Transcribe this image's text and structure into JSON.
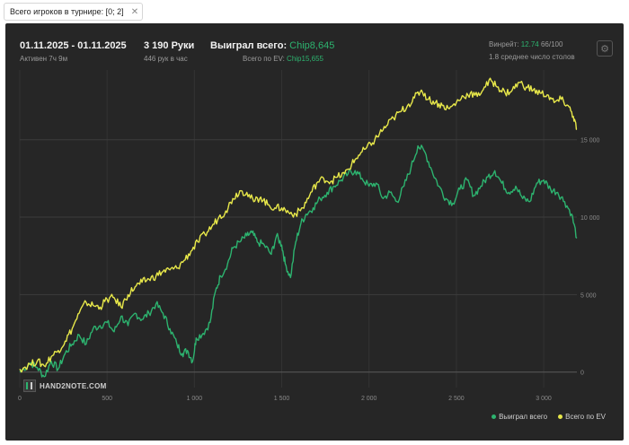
{
  "filter": {
    "label": "Всего игроков в турнире: [0; 2]",
    "close": "✕"
  },
  "header": {
    "date_range": "01.11.2025 - 01.11.2025",
    "active": "Активен 7ч 9м",
    "hands": "3 190 Руки",
    "hands_per_hour": "446 рук в час",
    "won_label": "Выиграл всего:",
    "won_value": "Chip8,645",
    "ev_label": "Всего по EV:",
    "ev_value": "Chip15,655",
    "winrate_label": "Винрейт:",
    "winrate_value": "12.74",
    "winrate_suffix": "66/100",
    "tables": "1.8 среднее число столов",
    "settings_icon": "gear-icon"
  },
  "logo": {
    "text": "HAND2NOTE.COM"
  },
  "legend": [
    {
      "label": "Выиграл всего",
      "color": "#2db36f"
    },
    {
      "label": "Всего по EV",
      "color": "#e8e84a"
    }
  ],
  "chart_data": {
    "type": "line",
    "xlim": [
      0,
      3190
    ],
    "ylim": [
      -1000,
      19500
    ],
    "x_ticks": [
      0,
      500,
      1000,
      1500,
      2000,
      2500,
      3000
    ],
    "x_tick_labels": [
      "0",
      "500",
      "1 000",
      "1 500",
      "2 000",
      "2 500",
      "3 000"
    ],
    "y_ticks": [
      0,
      5000,
      10000,
      15000
    ],
    "y_tick_labels": [
      "0",
      "5 000",
      "10 000",
      "15 000"
    ],
    "grid": true,
    "legend_position": "bottom-right",
    "series": [
      {
        "name": "Выиграл всего",
        "color": "#2db36f",
        "points": [
          [
            0,
            0
          ],
          [
            60,
            600
          ],
          [
            100,
            300
          ],
          [
            140,
            -300
          ],
          [
            180,
            700
          ],
          [
            220,
            200
          ],
          [
            260,
            1200
          ],
          [
            300,
            1800
          ],
          [
            340,
            2400
          ],
          [
            380,
            1800
          ],
          [
            420,
            2800
          ],
          [
            460,
            3000
          ],
          [
            500,
            3200
          ],
          [
            540,
            2600
          ],
          [
            580,
            3600
          ],
          [
            620,
            3000
          ],
          [
            660,
            3800
          ],
          [
            700,
            3400
          ],
          [
            740,
            3800
          ],
          [
            780,
            4400
          ],
          [
            820,
            3800
          ],
          [
            860,
            2800
          ],
          [
            900,
            1800
          ],
          [
            930,
            1200
          ],
          [
            960,
            1400
          ],
          [
            990,
            700
          ],
          [
            1010,
            2200
          ],
          [
            1050,
            2500
          ],
          [
            1090,
            3200
          ],
          [
            1120,
            5200
          ],
          [
            1150,
            6200
          ],
          [
            1190,
            7000
          ],
          [
            1220,
            8000
          ],
          [
            1260,
            8400
          ],
          [
            1300,
            8800
          ],
          [
            1330,
            9000
          ],
          [
            1360,
            8400
          ],
          [
            1400,
            8200
          ],
          [
            1440,
            7600
          ],
          [
            1470,
            8800
          ],
          [
            1500,
            8200
          ],
          [
            1520,
            7000
          ],
          [
            1550,
            6100
          ],
          [
            1580,
            8400
          ],
          [
            1610,
            9600
          ],
          [
            1640,
            10200
          ],
          [
            1680,
            10600
          ],
          [
            1720,
            11200
          ],
          [
            1760,
            11600
          ],
          [
            1800,
            12000
          ],
          [
            1840,
            12400
          ],
          [
            1880,
            12800
          ],
          [
            1920,
            13000
          ],
          [
            1960,
            12500
          ],
          [
            2000,
            12000
          ],
          [
            2040,
            12200
          ],
          [
            2080,
            11200
          ],
          [
            2120,
            11600
          ],
          [
            2160,
            11000
          ],
          [
            2200,
            12000
          ],
          [
            2240,
            13200
          ],
          [
            2280,
            14600
          ],
          [
            2320,
            14200
          ],
          [
            2360,
            13000
          ],
          [
            2400,
            12000
          ],
          [
            2440,
            11200
          ],
          [
            2480,
            10900
          ],
          [
            2520,
            11800
          ],
          [
            2560,
            12400
          ],
          [
            2600,
            11400
          ],
          [
            2640,
            12000
          ],
          [
            2680,
            12600
          ],
          [
            2720,
            13000
          ],
          [
            2760,
            12200
          ],
          [
            2800,
            11600
          ],
          [
            2840,
            12000
          ],
          [
            2880,
            11200
          ],
          [
            2920,
            11000
          ],
          [
            2960,
            12200
          ],
          [
            3000,
            12400
          ],
          [
            3040,
            11800
          ],
          [
            3080,
            11600
          ],
          [
            3120,
            11000
          ],
          [
            3160,
            10200
          ],
          [
            3190,
            8645
          ]
        ]
      },
      {
        "name": "Всего по EV",
        "color": "#e8e84a",
        "points": [
          [
            0,
            200
          ],
          [
            60,
            500
          ],
          [
            100,
            700
          ],
          [
            140,
            400
          ],
          [
            180,
            1000
          ],
          [
            220,
            1400
          ],
          [
            260,
            2000
          ],
          [
            300,
            2800
          ],
          [
            340,
            3800
          ],
          [
            380,
            4500
          ],
          [
            420,
            4300
          ],
          [
            460,
            4200
          ],
          [
            500,
            4700
          ],
          [
            540,
            4800
          ],
          [
            580,
            4200
          ],
          [
            620,
            5000
          ],
          [
            660,
            5500
          ],
          [
            700,
            5800
          ],
          [
            740,
            6000
          ],
          [
            780,
            6200
          ],
          [
            820,
            6500
          ],
          [
            860,
            6600
          ],
          [
            900,
            6700
          ],
          [
            940,
            7200
          ],
          [
            980,
            7800
          ],
          [
            1020,
            8400
          ],
          [
            1060,
            8900
          ],
          [
            1100,
            9400
          ],
          [
            1140,
            10000
          ],
          [
            1180,
            10400
          ],
          [
            1220,
            11200
          ],
          [
            1260,
            11700
          ],
          [
            1300,
            11600
          ],
          [
            1340,
            11000
          ],
          [
            1380,
            11300
          ],
          [
            1420,
            10800
          ],
          [
            1460,
            10600
          ],
          [
            1500,
            10600
          ],
          [
            1540,
            10300
          ],
          [
            1580,
            10200
          ],
          [
            1620,
            10600
          ],
          [
            1660,
            11400
          ],
          [
            1700,
            12200
          ],
          [
            1740,
            12500
          ],
          [
            1780,
            12300
          ],
          [
            1820,
            12600
          ],
          [
            1860,
            12800
          ],
          [
            1900,
            13400
          ],
          [
            1940,
            14000
          ],
          [
            1980,
            14400
          ],
          [
            2020,
            14800
          ],
          [
            2060,
            15400
          ],
          [
            2100,
            15900
          ],
          [
            2140,
            16400
          ],
          [
            2180,
            16800
          ],
          [
            2220,
            17200
          ],
          [
            2260,
            17700
          ],
          [
            2300,
            18200
          ],
          [
            2340,
            17600
          ],
          [
            2380,
            17400
          ],
          [
            2420,
            17200
          ],
          [
            2460,
            17000
          ],
          [
            2500,
            17400
          ],
          [
            2540,
            17800
          ],
          [
            2580,
            18000
          ],
          [
            2620,
            17800
          ],
          [
            2660,
            18400
          ],
          [
            2700,
            18800
          ],
          [
            2740,
            18400
          ],
          [
            2780,
            18000
          ],
          [
            2820,
            18200
          ],
          [
            2860,
            18700
          ],
          [
            2900,
            18400
          ],
          [
            2940,
            18200
          ],
          [
            2980,
            18000
          ],
          [
            3020,
            17900
          ],
          [
            3060,
            17400
          ],
          [
            3100,
            17600
          ],
          [
            3140,
            17200
          ],
          [
            3170,
            16500
          ],
          [
            3190,
            15655
          ]
        ]
      }
    ]
  }
}
